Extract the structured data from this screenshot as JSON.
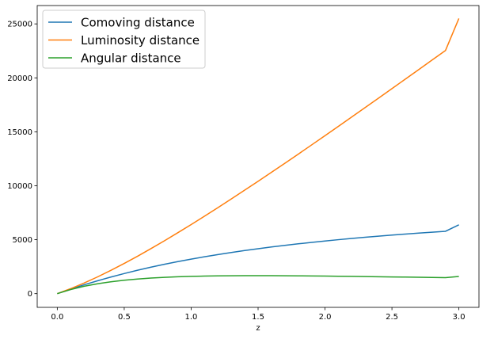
{
  "chart_data": {
    "type": "line",
    "title": "",
    "xlabel": "z",
    "ylabel": "",
    "xlim": [
      -0.15,
      3.15
    ],
    "ylim": [
      -1270,
      26700
    ],
    "xticks": [
      0.0,
      0.5,
      1.0,
      1.5,
      2.0,
      2.5,
      3.0
    ],
    "xtick_labels": [
      "0.0",
      "0.5",
      "1.0",
      "1.5",
      "2.0",
      "2.5",
      "3.0"
    ],
    "yticks": [
      0,
      5000,
      10000,
      15000,
      20000,
      25000
    ],
    "ytick_labels": [
      "0",
      "5000",
      "10000",
      "15000",
      "20000",
      "25000"
    ],
    "grid": false,
    "legend_position": "top-left",
    "x": [
      0.0,
      0.1,
      0.2,
      0.3,
      0.4,
      0.5,
      0.6,
      0.7,
      0.8,
      0.9,
      1.0,
      1.1,
      1.2,
      1.3,
      1.4,
      1.5,
      1.6,
      1.7,
      1.8,
      1.9,
      2.0,
      2.1,
      2.2,
      2.3,
      2.4,
      2.5,
      2.6,
      2.7,
      2.8,
      2.9,
      3.0
    ],
    "series": [
      {
        "name": "Comoving distance",
        "color": "#1f77b4",
        "values": [
          0,
          421,
          818,
          1190,
          1539,
          1865,
          2170,
          2455,
          2721,
          2970,
          3202,
          3420,
          3624,
          3816,
          3996,
          4165,
          4325,
          4476,
          4618,
          4753,
          4881,
          5002,
          5117,
          5226,
          5330,
          5429,
          5523,
          5613,
          5699,
          5781,
          6375
        ]
      },
      {
        "name": "Luminosity distance",
        "color": "#ff7f0e",
        "values": [
          0,
          463,
          982,
          1547,
          2155,
          2798,
          3472,
          4174,
          4898,
          5643,
          6404,
          7182,
          7973,
          8777,
          9591,
          10413,
          11245,
          12083,
          12930,
          13784,
          14643,
          15506,
          16374,
          17246,
          18122,
          19001,
          19882,
          20765,
          21650,
          22537,
          25500
        ]
      },
      {
        "name": "Angular distance",
        "color": "#2ca02c",
        "values": [
          0,
          383,
          682,
          915,
          1099,
          1243,
          1356,
          1444,
          1512,
          1563,
          1601,
          1628,
          1647,
          1659,
          1665,
          1666,
          1663,
          1658,
          1650,
          1639,
          1627,
          1614,
          1599,
          1584,
          1568,
          1551,
          1534,
          1517,
          1499,
          1482,
          1594
        ]
      }
    ]
  }
}
